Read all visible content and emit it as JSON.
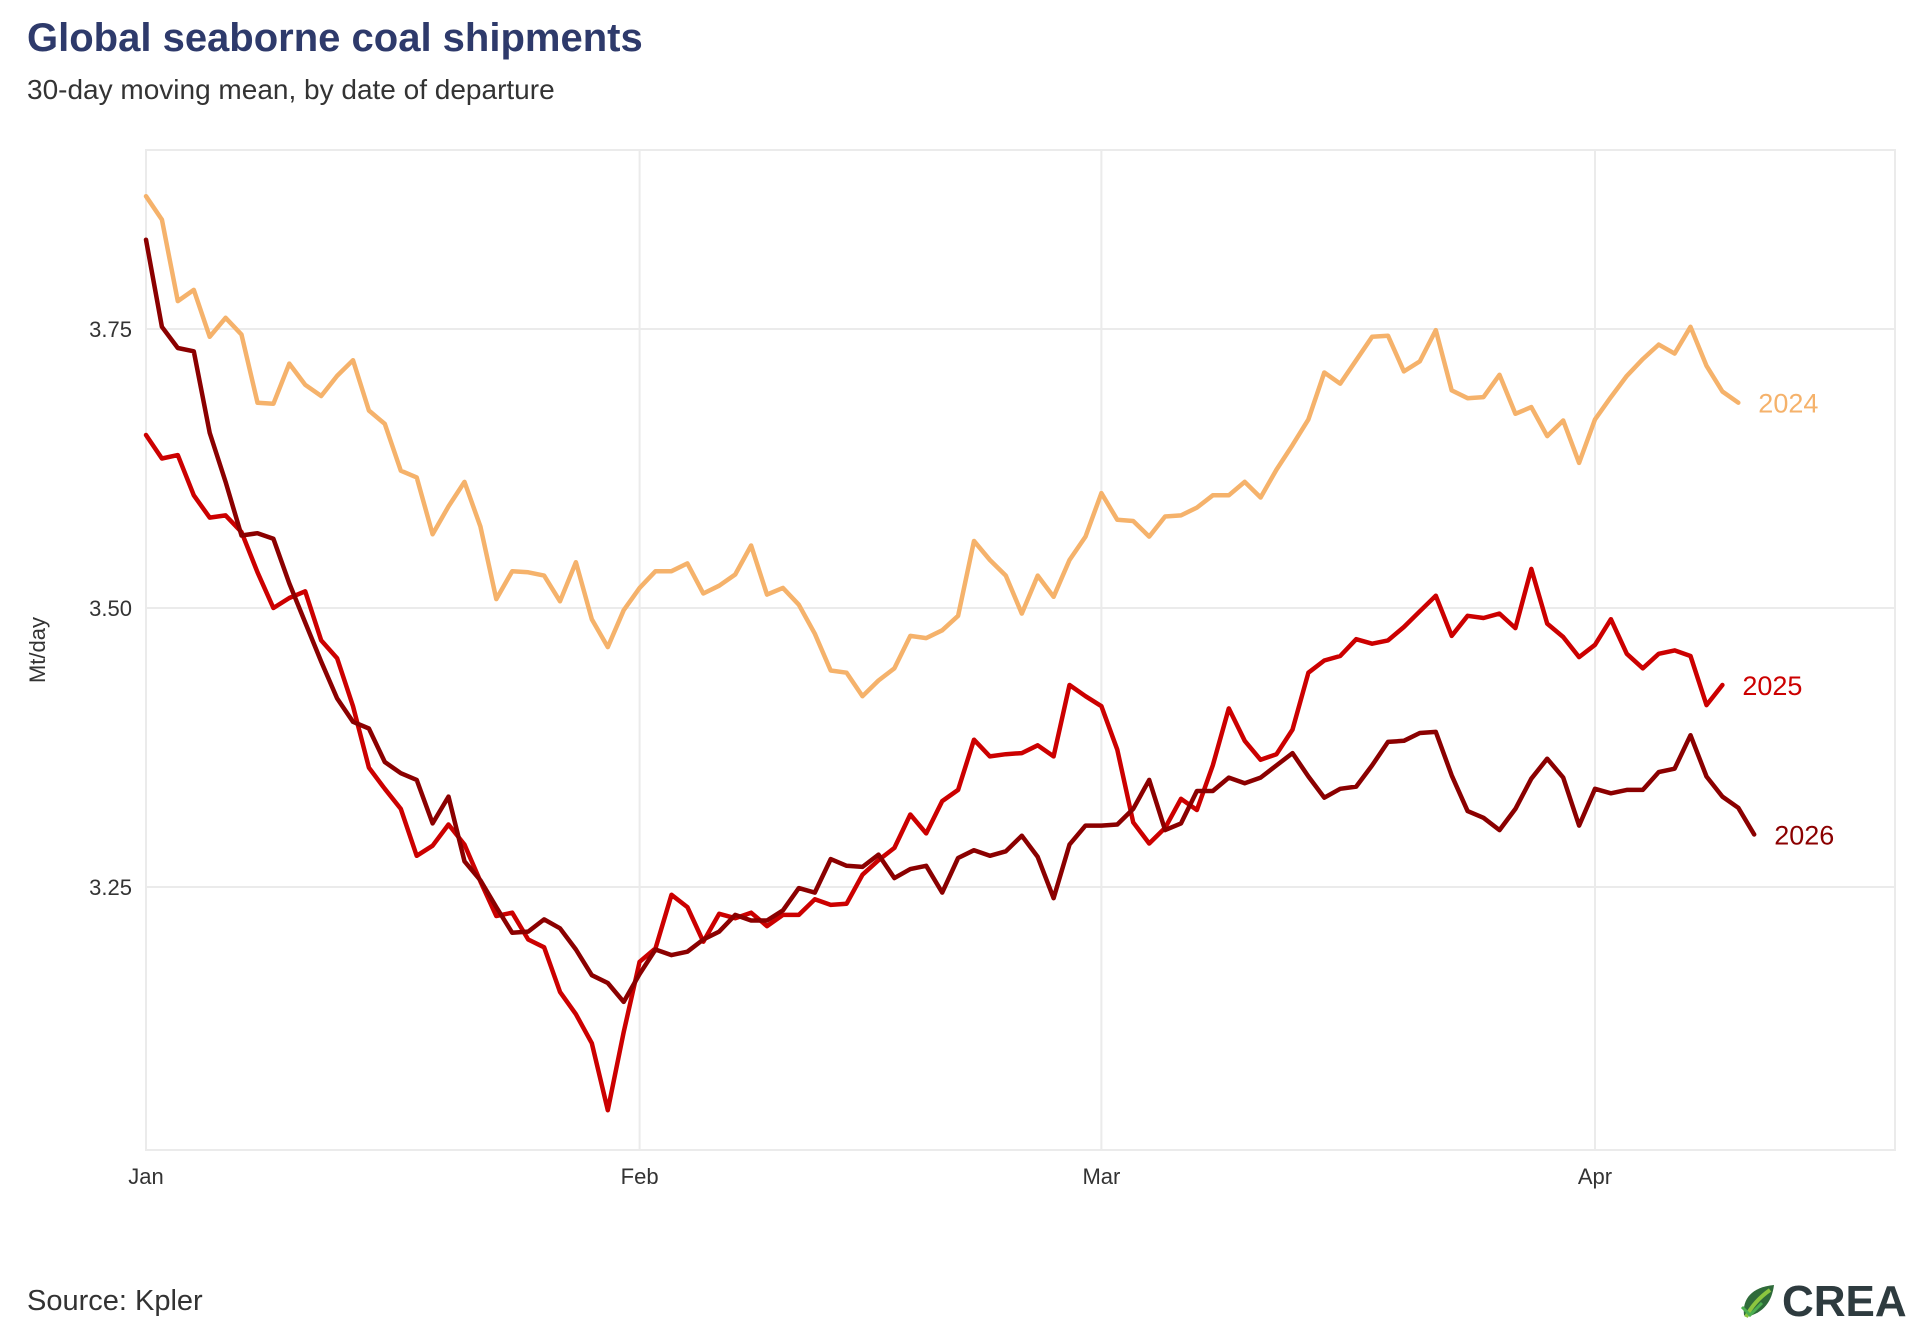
{
  "header": {
    "title": "Global seaborne coal shipments",
    "subtitle": "30-day moving mean, by date of departure"
  },
  "footer": {
    "source": "Source: Kpler",
    "logo_text": "CREA"
  },
  "chart_data": {
    "type": "line",
    "title": "Global seaborne coal shipments",
    "subtitle": "30-day moving mean, by date of departure",
    "xlabel": "",
    "ylabel": "Mt/day",
    "x_unit": "day of year",
    "xlim": [
      1,
      113
    ],
    "ylim": [
      3.04,
      3.91
    ],
    "x_ticks": [
      {
        "label": "Jan",
        "day": 1
      },
      {
        "label": "Feb",
        "day": 32
      },
      {
        "label": "Mar",
        "day": 61
      },
      {
        "label": "Apr",
        "day": 92
      }
    ],
    "y_ticks": [
      {
        "label": "3.25",
        "value": 3.25
      },
      {
        "label": "3.50",
        "value": 3.5
      },
      {
        "label": "3.75",
        "value": 3.75
      }
    ],
    "grid": true,
    "legend": "direct labels at line ends",
    "series": [
      {
        "name": "2024",
        "color": "#f5b26b",
        "x_start": 1,
        "values": [
          3.869,
          3.848,
          3.775,
          3.785,
          3.743,
          3.76,
          3.745,
          3.684,
          3.683,
          3.719,
          3.7,
          3.69,
          3.708,
          3.722,
          3.677,
          3.665,
          3.623,
          3.617,
          3.566,
          3.591,
          3.613,
          3.573,
          3.508,
          3.533,
          3.532,
          3.529,
          3.506,
          3.541,
          3.49,
          3.465,
          3.498,
          3.518,
          3.533,
          3.533,
          3.54,
          3.513,
          3.52,
          3.53,
          3.556,
          3.512,
          3.518,
          3.503,
          3.477,
          3.444,
          3.442,
          3.421,
          3.435,
          3.446,
          3.475,
          3.473,
          3.48,
          3.493,
          3.56,
          3.543,
          3.529,
          3.495,
          3.529,
          3.51,
          3.543,
          3.564,
          3.603,
          3.579,
          3.578,
          3.564,
          3.582,
          3.583,
          3.59,
          3.601,
          3.601,
          3.613,
          3.599,
          3.624,
          3.646,
          3.669,
          3.711,
          3.701,
          3.722,
          3.743,
          3.744,
          3.712,
          3.721,
          3.749,
          3.695,
          3.688,
          3.689,
          3.709,
          3.674,
          3.68,
          3.654,
          3.668,
          3.63,
          3.669,
          3.689,
          3.708,
          3.723,
          3.736,
          3.728,
          3.752,
          3.717,
          3.694,
          3.684
        ]
      },
      {
        "name": "2025",
        "color": "#cc0000",
        "x_start": 1,
        "values": [
          3.655,
          3.634,
          3.637,
          3.601,
          3.581,
          3.583,
          3.568,
          3.532,
          3.5,
          3.509,
          3.515,
          3.471,
          3.455,
          3.412,
          3.357,
          3.338,
          3.32,
          3.278,
          3.287,
          3.306,
          3.288,
          3.255,
          3.224,
          3.227,
          3.203,
          3.196,
          3.156,
          3.136,
          3.11,
          3.05,
          3.12,
          3.183,
          3.195,
          3.243,
          3.232,
          3.201,
          3.226,
          3.222,
          3.227,
          3.215,
          3.225,
          3.225,
          3.239,
          3.234,
          3.235,
          3.261,
          3.274,
          3.285,
          3.315,
          3.298,
          3.327,
          3.337,
          3.382,
          3.367,
          3.369,
          3.37,
          3.377,
          3.367,
          3.431,
          3.421,
          3.412,
          3.373,
          3.308,
          3.289,
          3.303,
          3.329,
          3.319,
          3.359,
          3.41,
          3.381,
          3.364,
          3.369,
          3.391,
          3.442,
          3.453,
          3.457,
          3.472,
          3.468,
          3.471,
          3.483,
          3.497,
          3.511,
          3.475,
          3.493,
          3.491,
          3.495,
          3.482,
          3.535,
          3.486,
          3.474,
          3.456,
          3.467,
          3.49,
          3.459,
          3.446,
          3.459,
          3.462,
          3.457,
          3.413,
          3.431
        ]
      },
      {
        "name": "2026",
        "color": "#8b0000",
        "x_start": 1,
        "values": [
          3.83,
          3.752,
          3.733,
          3.73,
          3.657,
          3.613,
          3.565,
          3.567,
          3.562,
          3.522,
          3.487,
          3.452,
          3.419,
          3.398,
          3.392,
          3.362,
          3.352,
          3.346,
          3.307,
          3.331,
          3.273,
          3.256,
          3.232,
          3.209,
          3.21,
          3.221,
          3.213,
          3.194,
          3.171,
          3.164,
          3.147,
          3.172,
          3.194,
          3.189,
          3.192,
          3.203,
          3.21,
          3.225,
          3.22,
          3.22,
          3.229,
          3.249,
          3.245,
          3.275,
          3.269,
          3.268,
          3.279,
          3.258,
          3.266,
          3.269,
          3.245,
          3.276,
          3.283,
          3.278,
          3.282,
          3.296,
          3.277,
          3.24,
          3.288,
          3.305,
          3.305,
          3.306,
          3.32,
          3.346,
          3.301,
          3.307,
          3.336,
          3.336,
          3.348,
          3.343,
          3.348,
          3.359,
          3.37,
          3.349,
          3.33,
          3.338,
          3.34,
          3.359,
          3.38,
          3.381,
          3.388,
          3.389,
          3.35,
          3.318,
          3.312,
          3.301,
          3.32,
          3.347,
          3.365,
          3.348,
          3.305,
          3.338,
          3.334,
          3.337,
          3.337,
          3.353,
          3.356,
          3.386,
          3.349,
          3.331,
          3.321,
          3.297
        ]
      }
    ]
  }
}
